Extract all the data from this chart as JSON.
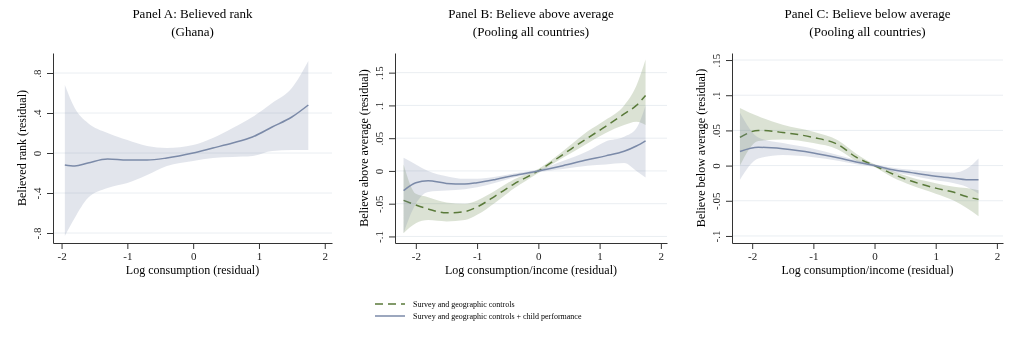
{
  "chart_data": [
    {
      "type": "line",
      "title": "Panel A: Believed rank",
      "subtitle": "(Ghana)",
      "xlabel": "Log consumption (residual)",
      "ylabel": "Believed rank (residual)",
      "xlim": [
        -2.13,
        2.11
      ],
      "ylim": [
        -0.9,
        1.0
      ],
      "xticks": [
        -2,
        -1,
        0,
        1,
        2
      ],
      "yticks": [
        {
          "value": -0.8,
          "label": "-.8"
        },
        {
          "value": -0.4,
          "label": "-.4"
        },
        {
          "value": 0,
          "label": "0"
        },
        {
          "value": 0.4,
          "label": ".4"
        },
        {
          "value": 0.8,
          "label": ".8"
        }
      ],
      "grid": "y",
      "legend": false,
      "series": [
        {
          "color": "#7b8aa8",
          "line_style": "solid",
          "x": [
            -1.95,
            -1.8,
            -1.6,
            -1.3,
            -1.0,
            -0.7,
            -0.4,
            0,
            0.3,
            0.6,
            0.9,
            1.2,
            1.5,
            1.75
          ],
          "values": [
            -0.12,
            -0.13,
            -0.1,
            -0.06,
            -0.07,
            -0.07,
            -0.05,
            0,
            0.05,
            0.1,
            0.16,
            0.26,
            0.36,
            0.48
          ],
          "upper": [
            0.68,
            0.45,
            0.3,
            0.2,
            0.13,
            0.07,
            0.05,
            0.08,
            0.15,
            0.25,
            0.36,
            0.5,
            0.65,
            0.92
          ],
          "lower": [
            -0.83,
            -0.65,
            -0.45,
            -0.35,
            -0.3,
            -0.22,
            -0.13,
            -0.08,
            -0.05,
            -0.04,
            -0.03,
            0.02,
            0.03,
            0.03
          ]
        }
      ]
    },
    {
      "type": "line",
      "title": "Panel B: Believe above average",
      "subtitle": "(Pooling all countries)",
      "xlabel": "Log consumption/income (residual)",
      "ylabel": "Believe above average (residual)",
      "xlim": [
        -2.34,
        2.1
      ],
      "ylim": [
        -0.11,
        0.18
      ],
      "xticks": [
        -2,
        -1,
        0,
        1,
        2
      ],
      "yticks": [
        {
          "value": -0.1,
          "label": "-.1"
        },
        {
          "value": -0.05,
          "label": "-.05"
        },
        {
          "value": 0,
          "label": "0"
        },
        {
          "value": 0.05,
          "label": ".05"
        },
        {
          "value": 0.1,
          "label": ".1"
        },
        {
          "value": 0.15,
          "label": ".15"
        }
      ],
      "grid": "y",
      "legend": "bottom",
      "series": [
        {
          "name": "Survey and geographic controls",
          "color": "#5a7a3a",
          "line_style": "dashed",
          "x": [
            -2.2,
            -2.0,
            -1.8,
            -1.5,
            -1.2,
            -1.0,
            -0.7,
            -0.4,
            0,
            0.4,
            0.8,
            1.1,
            1.4,
            1.6,
            1.75
          ],
          "values": [
            -0.045,
            -0.052,
            -0.058,
            -0.064,
            -0.062,
            -0.055,
            -0.038,
            -0.02,
            0,
            0.025,
            0.05,
            0.068,
            0.087,
            0.1,
            0.115
          ],
          "upper": [
            0.01,
            -0.035,
            -0.04,
            -0.048,
            -0.05,
            -0.045,
            -0.03,
            -0.013,
            0.003,
            0.03,
            0.06,
            0.078,
            0.1,
            0.13,
            0.17
          ],
          "lower": [
            -0.095,
            -0.08,
            -0.075,
            -0.077,
            -0.075,
            -0.067,
            -0.048,
            -0.027,
            -0.003,
            0.02,
            0.042,
            0.058,
            0.07,
            0.075,
            0.07
          ]
        },
        {
          "name": "Survey and geographic controls + child performance",
          "color": "#7b8aa8",
          "line_style": "solid",
          "x": [
            -2.2,
            -2.0,
            -1.8,
            -1.5,
            -1.2,
            -1.0,
            -0.7,
            -0.4,
            0,
            0.4,
            0.8,
            1.1,
            1.4,
            1.6,
            1.75
          ],
          "values": [
            -0.03,
            -0.018,
            -0.015,
            -0.019,
            -0.02,
            -0.018,
            -0.013,
            -0.007,
            0,
            0.008,
            0.017,
            0.023,
            0.03,
            0.038,
            0.046
          ],
          "upper": [
            0.02,
            0.01,
            0.0,
            -0.008,
            -0.012,
            -0.012,
            -0.009,
            -0.004,
            0.002,
            0.015,
            0.03,
            0.045,
            0.052,
            0.065,
            0.1
          ],
          "lower": [
            -0.095,
            -0.05,
            -0.032,
            -0.03,
            -0.028,
            -0.025,
            -0.018,
            -0.01,
            -0.002,
            0.003,
            0.008,
            0.01,
            0.012,
            0.0,
            -0.01
          ]
        }
      ]
    },
    {
      "type": "line",
      "title": "Panel C: Believe below average",
      "subtitle": "(Pooling all countries)",
      "xlabel": "Log consumption/income (residual)",
      "ylabel": "Believe below average (residual)",
      "xlim": [
        -2.33,
        2.1
      ],
      "ylim": [
        -0.11,
        0.16
      ],
      "xticks": [
        -2,
        -1,
        0,
        1,
        2
      ],
      "yticks": [
        {
          "value": -0.1,
          "label": "-.1"
        },
        {
          "value": -0.05,
          "label": "-.05"
        },
        {
          "value": 0,
          "label": "0"
        },
        {
          "value": 0.05,
          "label": ".05"
        },
        {
          "value": 0.1,
          "label": ".1"
        },
        {
          "value": 0.15,
          "label": ".15"
        }
      ],
      "grid": "y",
      "legend": false,
      "series": [
        {
          "color": "#5a7a3a",
          "line_style": "dashed",
          "x": [
            -2.2,
            -1.9,
            -1.5,
            -1.0,
            -0.6,
            -0.3,
            0,
            0.3,
            0.6,
            1.0,
            1.3,
            1.5,
            1.7
          ],
          "values": [
            0.04,
            0.05,
            0.047,
            0.04,
            0.03,
            0.012,
            0,
            -0.012,
            -0.022,
            -0.032,
            -0.038,
            -0.044,
            -0.048
          ],
          "upper": [
            0.082,
            0.07,
            0.058,
            0.048,
            0.036,
            0.017,
            0.002,
            -0.008,
            -0.017,
            -0.025,
            -0.03,
            -0.032,
            -0.035
          ],
          "lower": [
            0.0,
            0.035,
            0.037,
            0.032,
            0.023,
            0.007,
            -0.002,
            -0.017,
            -0.028,
            -0.04,
            -0.05,
            -0.06,
            -0.072
          ]
        },
        {
          "color": "#7b8aa8",
          "line_style": "solid",
          "x": [
            -2.2,
            -1.9,
            -1.5,
            -1.0,
            -0.6,
            -0.3,
            0,
            0.3,
            0.6,
            1.0,
            1.3,
            1.5,
            1.7
          ],
          "values": [
            0.02,
            0.026,
            0.024,
            0.018,
            0.011,
            0.005,
            0,
            -0.006,
            -0.01,
            -0.015,
            -0.018,
            -0.02,
            -0.02
          ],
          "upper": [
            0.075,
            0.04,
            0.032,
            0.024,
            0.015,
            0.008,
            0.002,
            -0.003,
            -0.006,
            -0.009,
            -0.01,
            -0.005,
            0.01
          ],
          "lower": [
            -0.02,
            0.01,
            0.015,
            0.012,
            0.007,
            0.002,
            -0.002,
            -0.009,
            -0.014,
            -0.021,
            -0.025,
            -0.03,
            -0.04
          ]
        }
      ]
    }
  ]
}
